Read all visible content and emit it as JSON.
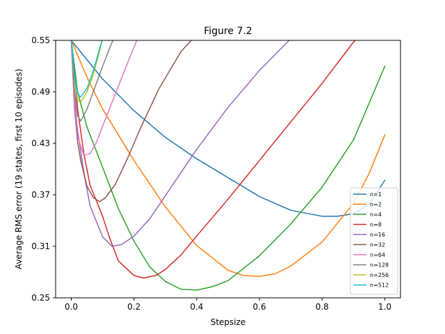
{
  "chart_data": {
    "type": "line",
    "title": "Figure 7.2",
    "xlabel": "Stepsize",
    "ylabel": "Average RMS error (19 states, first 10 episodes)",
    "xlim": [
      -0.05,
      1.05
    ],
    "ylim": [
      0.25,
      0.55
    ],
    "xticks": [
      0.0,
      0.2,
      0.4,
      0.6,
      0.8,
      1.0
    ],
    "xtick_labels": [
      "0.0",
      "0.2",
      "0.4",
      "0.6",
      "0.8",
      "1.0"
    ],
    "yticks": [
      0.25,
      0.31,
      0.37,
      0.43,
      0.49,
      0.55
    ],
    "ytick_labels": [
      "0.25",
      "0.31",
      "0.37",
      "0.43",
      "0.49",
      "0.55"
    ],
    "grid": false,
    "legend_position": "lower-right",
    "series": [
      {
        "name": "n=1",
        "color": "#1f77b4",
        "x": [
          0.0,
          0.1,
          0.2,
          0.3,
          0.4,
          0.5,
          0.6,
          0.7,
          0.8,
          0.85,
          0.9,
          0.95,
          1.0
        ],
        "values": [
          0.55,
          0.505,
          0.468,
          0.437,
          0.412,
          0.39,
          0.368,
          0.352,
          0.345,
          0.345,
          0.348,
          0.359,
          0.387
        ]
      },
      {
        "name": "n=2",
        "color": "#ff7f0e",
        "x": [
          0.0,
          0.05,
          0.1,
          0.2,
          0.3,
          0.4,
          0.5,
          0.55,
          0.6,
          0.65,
          0.7,
          0.8,
          0.9,
          0.95,
          1.0
        ],
        "values": [
          0.55,
          0.507,
          0.47,
          0.41,
          0.356,
          0.311,
          0.282,
          0.276,
          0.275,
          0.278,
          0.287,
          0.315,
          0.36,
          0.395,
          0.44
        ]
      },
      {
        "name": "n=4",
        "color": "#2ca02c",
        "x": [
          0.0,
          0.02,
          0.05,
          0.1,
          0.15,
          0.2,
          0.25,
          0.3,
          0.35,
          0.4,
          0.45,
          0.5,
          0.6,
          0.7,
          0.8,
          0.9,
          1.0
        ],
        "values": [
          0.55,
          0.49,
          0.449,
          0.402,
          0.354,
          0.316,
          0.286,
          0.269,
          0.26,
          0.259,
          0.263,
          0.27,
          0.299,
          0.336,
          0.379,
          0.434,
          0.52
        ]
      },
      {
        "name": "n=8",
        "color": "#d62728",
        "x": [
          0.0,
          0.02,
          0.04,
          0.06,
          0.08,
          0.1,
          0.12,
          0.15,
          0.2,
          0.23,
          0.27,
          0.3,
          0.35,
          0.4,
          0.5,
          0.6,
          0.7,
          0.8,
          0.9,
          0.95
        ],
        "values": [
          0.55,
          0.47,
          0.418,
          0.381,
          0.363,
          0.345,
          0.322,
          0.293,
          0.276,
          0.273,
          0.276,
          0.283,
          0.3,
          0.322,
          0.365,
          0.41,
          0.455,
          0.5,
          0.548,
          0.57
        ]
      },
      {
        "name": "n=16",
        "color": "#9467bd",
        "x": [
          0.0,
          0.01,
          0.02,
          0.04,
          0.06,
          0.08,
          0.1,
          0.13,
          0.16,
          0.2,
          0.25,
          0.3,
          0.4,
          0.5,
          0.6,
          0.7,
          0.75
        ],
        "values": [
          0.55,
          0.48,
          0.445,
          0.396,
          0.357,
          0.339,
          0.321,
          0.31,
          0.312,
          0.322,
          0.342,
          0.369,
          0.423,
          0.472,
          0.515,
          0.552,
          0.57
        ]
      },
      {
        "name": "n=32",
        "color": "#8c564b",
        "x": [
          0.0,
          0.01,
          0.02,
          0.03,
          0.05,
          0.07,
          0.09,
          0.11,
          0.14,
          0.18,
          0.22,
          0.28,
          0.35,
          0.42,
          0.45
        ],
        "values": [
          0.55,
          0.47,
          0.432,
          0.41,
          0.38,
          0.367,
          0.362,
          0.367,
          0.382,
          0.413,
          0.447,
          0.494,
          0.537,
          0.565,
          0.57
        ]
      },
      {
        "name": "n=64",
        "color": "#e377c2",
        "x": [
          0.0,
          0.01,
          0.02,
          0.04,
          0.06,
          0.08,
          0.1,
          0.13,
          0.16,
          0.2,
          0.23
        ],
        "values": [
          0.55,
          0.472,
          0.438,
          0.416,
          0.418,
          0.431,
          0.45,
          0.478,
          0.506,
          0.542,
          0.57
        ]
      },
      {
        "name": "n=128",
        "color": "#7f7f7f",
        "x": [
          0.0,
          0.01,
          0.02,
          0.03,
          0.05,
          0.07,
          0.1,
          0.13,
          0.14
        ],
        "values": [
          0.55,
          0.49,
          0.462,
          0.456,
          0.47,
          0.49,
          0.52,
          0.548,
          0.555
        ]
      },
      {
        "name": "n=256",
        "color": "#bcbd22",
        "x": [
          0.0,
          0.01,
          0.02,
          0.03,
          0.05,
          0.07,
          0.09,
          0.1
        ],
        "values": [
          0.55,
          0.505,
          0.48,
          0.478,
          0.49,
          0.51,
          0.537,
          0.552
        ]
      },
      {
        "name": "n=512",
        "color": "#17becf",
        "x": [
          0.0,
          0.01,
          0.02,
          0.03,
          0.05,
          0.07,
          0.09,
          0.1
        ],
        "values": [
          0.55,
          0.507,
          0.488,
          0.484,
          0.494,
          0.514,
          0.54,
          0.552
        ]
      }
    ]
  }
}
